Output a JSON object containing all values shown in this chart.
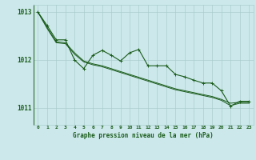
{
  "background_color": "#cce8eb",
  "grid_color": "#aacccc",
  "line_color": "#1a5c1a",
  "marker_color": "#1a5c1a",
  "title": "Graphe pression niveau de la mer (hPa)",
  "title_color": "#1a5c1a",
  "ylim": [
    1010.65,
    1013.15
  ],
  "xlim": [
    -0.5,
    23.5
  ],
  "yticks": [
    1011,
    1012,
    1013
  ],
  "xtick_labels": [
    "0",
    "1",
    "2",
    "3",
    "4",
    "5",
    "6",
    "7",
    "8",
    "9",
    "10",
    "11",
    "12",
    "13",
    "14",
    "15",
    "16",
    "17",
    "18",
    "19",
    "20",
    "21",
    "22",
    "23"
  ],
  "series_jagged": [
    1013.0,
    1012.72,
    1012.42,
    1012.42,
    1012.0,
    1011.82,
    1012.1,
    1012.2,
    1012.1,
    1011.98,
    1012.15,
    1012.22,
    1011.88,
    1011.88,
    1011.88,
    1011.7,
    1011.65,
    1011.58,
    1011.52,
    1011.52,
    1011.36,
    1011.04,
    1011.14,
    1011.14
  ],
  "series_smooth1": [
    1013.0,
    1012.68,
    1012.38,
    1012.36,
    1012.15,
    1011.98,
    1011.92,
    1011.88,
    1011.82,
    1011.76,
    1011.7,
    1011.64,
    1011.58,
    1011.52,
    1011.46,
    1011.4,
    1011.36,
    1011.32,
    1011.28,
    1011.24,
    1011.18,
    1011.1,
    1011.12,
    1011.12
  ],
  "series_smooth2": [
    1013.0,
    1012.66,
    1012.36,
    1012.34,
    1012.12,
    1011.96,
    1011.9,
    1011.86,
    1011.8,
    1011.74,
    1011.68,
    1011.62,
    1011.56,
    1011.5,
    1011.44,
    1011.38,
    1011.34,
    1011.3,
    1011.26,
    1011.22,
    1011.16,
    1011.05,
    1011.1,
    1011.1
  ]
}
